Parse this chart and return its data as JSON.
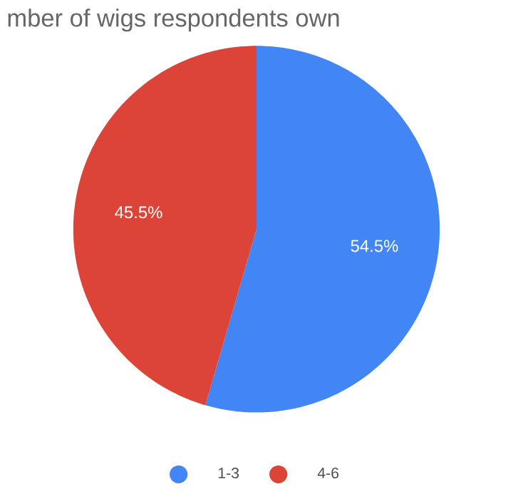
{
  "chart_data": {
    "type": "pie",
    "title": "mber of wigs respondents own",
    "categories": [
      "1-3",
      "4-6"
    ],
    "values": [
      54.5,
      45.5
    ],
    "colors": [
      "#4285f4",
      "#db4437"
    ],
    "value_labels": [
      "54.5%",
      "45.5%"
    ],
    "legend": "bottom"
  }
}
